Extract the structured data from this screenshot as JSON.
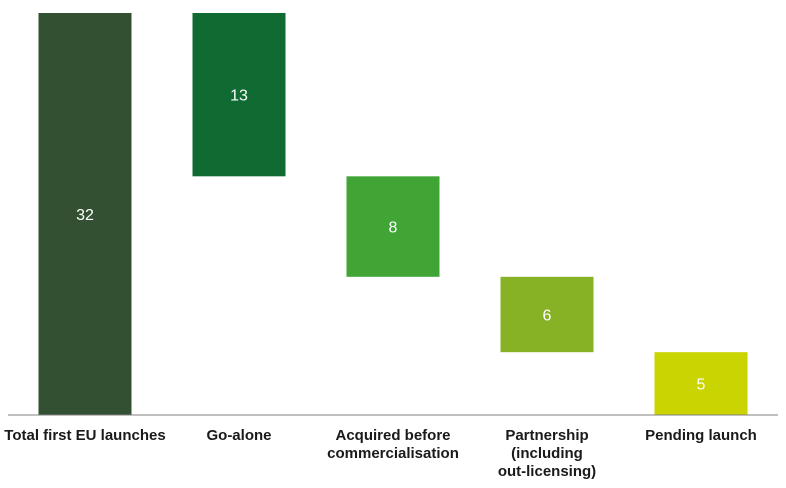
{
  "chart_data": {
    "type": "waterfall",
    "title": "",
    "xlabel": "",
    "ylabel": "",
    "ylim": [
      0,
      32
    ],
    "grid": false,
    "legend": "none",
    "categories": [
      [
        "Total first EU launches"
      ],
      [
        "Go-alone"
      ],
      [
        "Acquired before",
        "commercialisation"
      ],
      [
        "Partnership",
        "(including",
        "out-licensing)"
      ],
      [
        "Pending launch"
      ]
    ],
    "bars": [
      {
        "value": 32,
        "start": 0,
        "end": 32,
        "label": "32",
        "color": "#345032"
      },
      {
        "value": 13,
        "start": 19,
        "end": 32,
        "label": "13",
        "color": "#0f6b32"
      },
      {
        "value": 8,
        "start": 11,
        "end": 19,
        "label": "8",
        "color": "#41a536"
      },
      {
        "value": 6,
        "start": 5,
        "end": 11,
        "label": "6",
        "color": "#88b226"
      },
      {
        "value": 5,
        "start": 0,
        "end": 5,
        "label": "5",
        "color": "#c9d400"
      }
    ],
    "axis_color": "#808080"
  }
}
